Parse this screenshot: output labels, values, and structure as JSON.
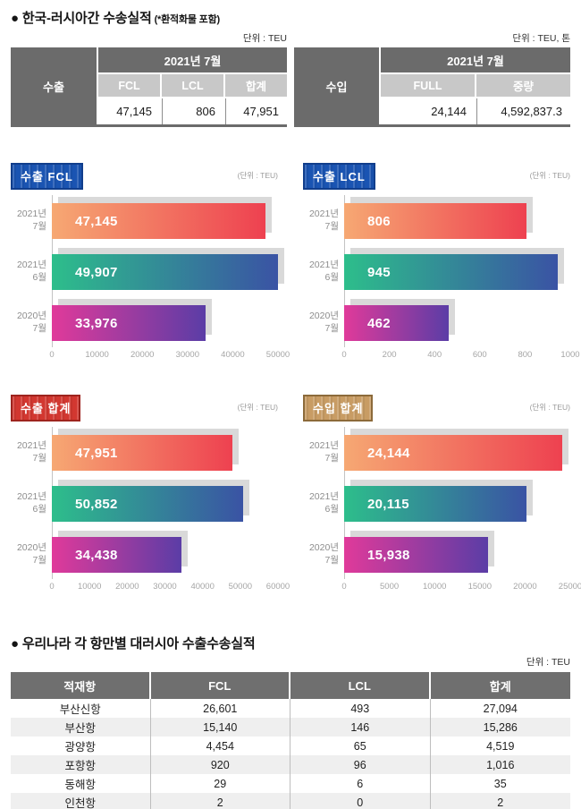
{
  "header": {
    "title": "● 한국-러시아간 수송실적",
    "title_note": "(*환적화물 포함)"
  },
  "export_table": {
    "unit_label": "단위 : TEU",
    "row_header": "수출",
    "period": "2021년 7월",
    "columns": [
      "FCL",
      "LCL",
      "합계"
    ],
    "values": [
      "47,145",
      "806",
      "47,951"
    ]
  },
  "import_table": {
    "unit_label": "단위 : TEU, 톤",
    "row_header": "수입",
    "period": "2021년 7월",
    "columns": [
      "FULL",
      "중량"
    ],
    "values": [
      "24,144",
      "4,592,837.3"
    ]
  },
  "chart_data": [
    {
      "type": "bar",
      "orientation": "horizontal",
      "badge": "수출 FCL",
      "badge_bg": "#1a54b2",
      "badge_border": "#113e8c",
      "unit": "(단위 : TEU)",
      "categories": [
        "2021년 7월",
        "2021년 6월",
        "2020년 7월"
      ],
      "values": [
        47145,
        49907,
        33976
      ],
      "value_labels": [
        "47,145",
        "49,907",
        "33,976"
      ],
      "xlim": [
        0,
        50000
      ],
      "ticks": [
        0,
        10000,
        20000,
        30000,
        40000,
        50000
      ]
    },
    {
      "type": "bar",
      "orientation": "horizontal",
      "badge": "수출 LCL",
      "badge_bg": "#1a54b2",
      "badge_border": "#113e8c",
      "unit": "(단위 : TEU)",
      "categories": [
        "2021년 7월",
        "2021년 6월",
        "2020년 7월"
      ],
      "values": [
        806,
        945,
        462
      ],
      "value_labels": [
        "806",
        "945",
        "462"
      ],
      "xlim": [
        0,
        1000
      ],
      "ticks": [
        0,
        200,
        400,
        600,
        800,
        1000
      ]
    },
    {
      "type": "bar",
      "orientation": "horizontal",
      "badge": "수출 합계",
      "badge_bg": "#d23730",
      "badge_border": "#9e241e",
      "unit": "(단위 : TEU)",
      "categories": [
        "2021년 7월",
        "2021년 6월",
        "2020년 7월"
      ],
      "values": [
        47951,
        50852,
        34438
      ],
      "value_labels": [
        "47,951",
        "50,852",
        "34,438"
      ],
      "xlim": [
        0,
        60000
      ],
      "ticks": [
        0,
        10000,
        20000,
        30000,
        40000,
        50000,
        60000
      ]
    },
    {
      "type": "bar",
      "orientation": "horizontal",
      "badge": "수입 합계",
      "badge_bg": "#c89c64",
      "badge_border": "#8c6a3a",
      "unit": "(단위 : TEU)",
      "categories": [
        "2021년 7월",
        "2021년 6월",
        "2020년 7월"
      ],
      "values": [
        24144,
        20115,
        15938
      ],
      "value_labels": [
        "24,144",
        "20,115",
        "15,938"
      ],
      "xlim": [
        0,
        25000
      ],
      "ticks": [
        0,
        5000,
        10000,
        15000,
        20000,
        25000
      ]
    }
  ],
  "ports_section": {
    "title": "● 우리나라 각 항만별 대러시아 수출수송실적",
    "unit_label": "단위 : TEU",
    "columns": [
      "적재항",
      "FCL",
      "LCL",
      "합계"
    ],
    "rows": [
      [
        "부산신항",
        "26,601",
        "493",
        "27,094"
      ],
      [
        "부산항",
        "15,140",
        "146",
        "15,286"
      ],
      [
        "광양항",
        "4,454",
        "65",
        "4,519"
      ],
      [
        "포항항",
        "920",
        "96",
        "1,016"
      ],
      [
        "동해항",
        "29",
        "6",
        "35"
      ],
      [
        "인천항",
        "2",
        "0",
        "2"
      ]
    ]
  },
  "colors": {
    "table_header_dark": "#6b6b6b",
    "table_subheader": "#c8c8c8",
    "row_stripe": "#efefef",
    "bar_shadow": "#d9d9d9",
    "bar_gradients": [
      [
        "#f6a873",
        "#ee4150"
      ],
      [
        "#2dbe8b",
        "#3a53a4"
      ],
      [
        "#e03a9a",
        "#5b3da6"
      ]
    ]
  }
}
